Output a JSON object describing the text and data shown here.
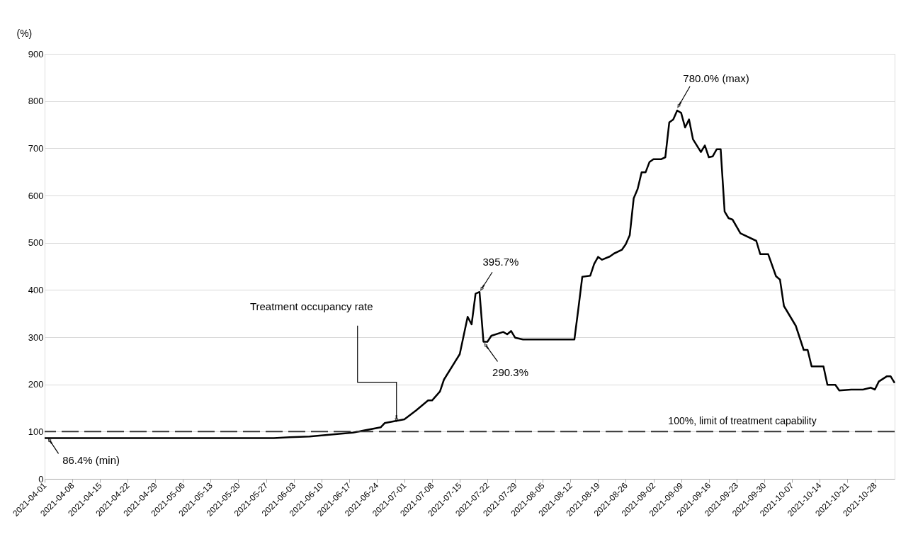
{
  "chart_data": {
    "type": "line",
    "ylabel": "(%)",
    "x": [
      "2021-04-01",
      "2021-05-29",
      "2021-06-02",
      "2021-06-07",
      "2021-06-13",
      "2021-06-18",
      "2021-06-25",
      "2021-06-26",
      "2021-07-01",
      "2021-07-04",
      "2021-07-07",
      "2021-07-08",
      "2021-07-10",
      "2021-07-11",
      "2021-07-15",
      "2021-07-17",
      "2021-07-18",
      "2021-07-19",
      "2021-07-20",
      "2021-07-21",
      "2021-07-22",
      "2021-07-23",
      "2021-07-26",
      "2021-07-27",
      "2021-07-28",
      "2021-07-29",
      "2021-07-31",
      "2021-08-13",
      "2021-08-14",
      "2021-08-15",
      "2021-08-17",
      "2021-08-18",
      "2021-08-19",
      "2021-08-20",
      "2021-08-22",
      "2021-08-23",
      "2021-08-25",
      "2021-08-26",
      "2021-08-27",
      "2021-08-28",
      "2021-08-29",
      "2021-08-30",
      "2021-08-31",
      "2021-09-01",
      "2021-09-02",
      "2021-09-04",
      "2021-09-05",
      "2021-09-06",
      "2021-09-07",
      "2021-09-08",
      "2021-09-09",
      "2021-09-10",
      "2021-09-11",
      "2021-09-12",
      "2021-09-14",
      "2021-09-15",
      "2021-09-16",
      "2021-09-17",
      "2021-09-18",
      "2021-09-19",
      "2021-09-20",
      "2021-09-21",
      "2021-09-22",
      "2021-09-24",
      "2021-09-28",
      "2021-09-29",
      "2021-10-01",
      "2021-10-03",
      "2021-10-04",
      "2021-10-05",
      "2021-10-08",
      "2021-10-10",
      "2021-10-11",
      "2021-10-12",
      "2021-10-15",
      "2021-10-16",
      "2021-10-18",
      "2021-10-19",
      "2021-10-22",
      "2021-10-25",
      "2021-10-27",
      "2021-10-28",
      "2021-10-29",
      "2021-10-31",
      "2021-11-01",
      "2021-11-02"
    ],
    "series": [
      {
        "color": "#000000",
        "values": [
          86.4,
          86.4,
          88,
          89.5,
          94,
          98,
          109,
          118,
          126,
          145,
          166,
          166,
          185,
          210,
          264,
          343,
          327,
          392,
          395.7,
          290.3,
          290.3,
          303,
          311,
          306,
          313,
          299,
          295,
          295,
          360,
          428,
          430,
          455,
          470,
          464,
          471,
          477,
          485,
          497,
          516,
          594,
          614,
          649,
          649,
          671,
          677,
          677,
          681,
          755,
          761,
          780,
          775,
          744,
          761,
          719,
          692,
          706,
          681,
          683,
          698,
          698,
          566,
          552,
          549,
          520,
          504,
          476,
          476,
          429,
          422,
          366,
          324,
          273,
          273,
          238,
          238,
          199,
          199,
          187,
          189,
          189,
          193,
          189,
          206,
          217,
          217,
          203
        ]
      }
    ],
    "xlim": [
      "2021-04-01",
      "2021-11-02"
    ],
    "xticks": [
      "2021-04-01",
      "2021-04-08",
      "2021-04-15",
      "2021-04-22",
      "2021-04-29",
      "2021-05-06",
      "2021-05-13",
      "2021-05-20",
      "2021-05-27",
      "2021-06-03",
      "2021-06-10",
      "2021-06-17",
      "2021-06-24",
      "2021-07-01",
      "2021-07-08",
      "2021-07-15",
      "2021-07-22",
      "2021-07-29",
      "2021-08-05",
      "2021-08-12",
      "2021-08-19",
      "2021-08-26",
      "2021-09-02",
      "2021-09-09",
      "2021-09-16",
      "2021-09-23",
      "2021-09-30",
      "2021-10-07",
      "2021-10-14",
      "2021-10-21",
      "2021-10-28"
    ],
    "ylim": [
      0,
      900
    ],
    "yticks": [
      0,
      100,
      200,
      300,
      400,
      500,
      600,
      700,
      800,
      900
    ],
    "grid": "y",
    "marker": "none",
    "line_style": "solid",
    "ref_lines": [
      {
        "axis": "y",
        "value": 100,
        "label": "100%, limit of treatment capability",
        "color": "#333333",
        "line_style": "dashed"
      }
    ],
    "annotations": [
      {
        "text": "395.7%",
        "x": "2021-07-20",
        "y": 395.7
      },
      {
        "text": "290.3%",
        "x": "2021-07-21",
        "y": 290.3
      },
      {
        "text": "780.0% (max)",
        "x": "2021-09-08",
        "y": 780
      },
      {
        "text": "86.4% (min)",
        "x": "2021-04-02",
        "y": 86.4
      },
      {
        "text": "Treatment occupancy rate",
        "x": "2021-06-29",
        "y": 122
      }
    ]
  }
}
